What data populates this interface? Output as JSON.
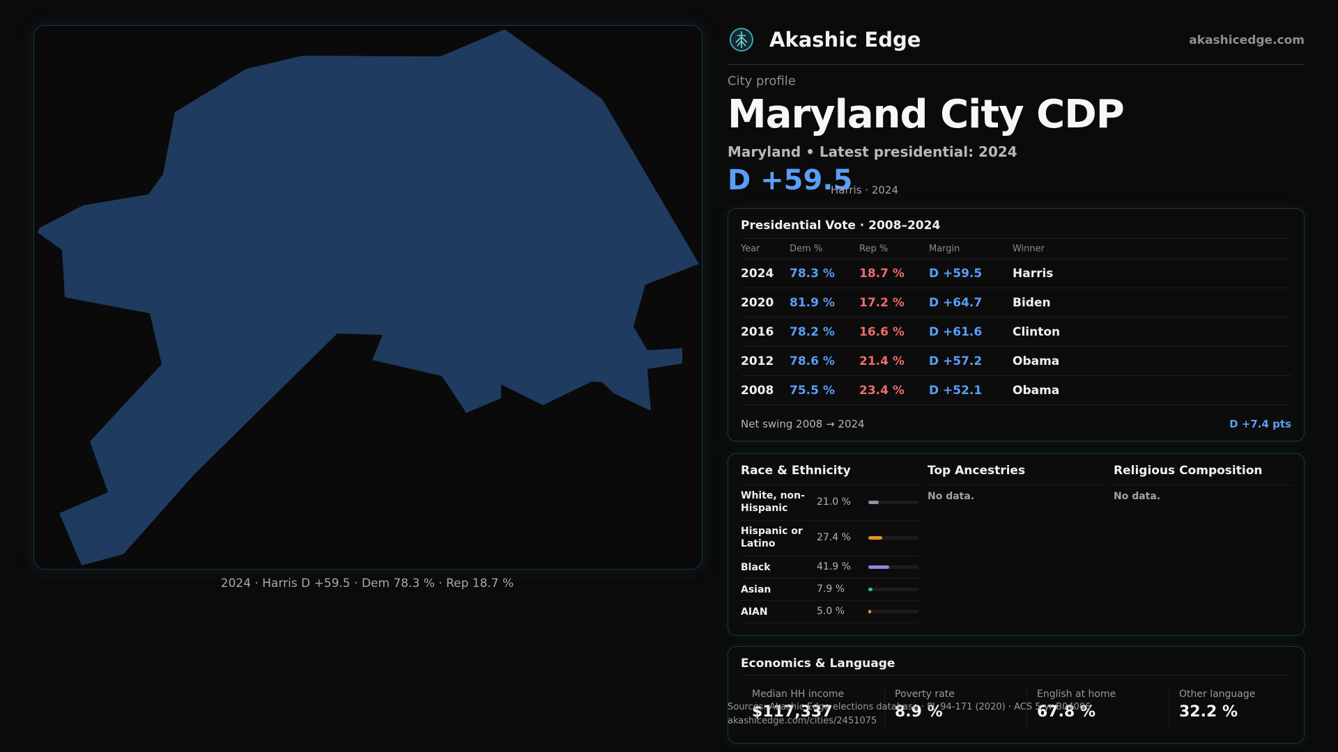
{
  "map": {
    "fill_color": "#1f3b5f",
    "caption": "2024 · Harris D +59.5 · Dem 78.3 % · Rep 18.7 %"
  },
  "brand": {
    "name": "Akashic Edge",
    "url": "akashicedge.com",
    "logo_icon": "tree-of-life-icon"
  },
  "profile": {
    "kicker": "City profile",
    "title": "Maryland City CDP",
    "subtitle": "Maryland • Latest presidential: 2024",
    "margin": "D +59.5",
    "margin_note": "Harris · 2024"
  },
  "vote": {
    "title": "Presidential Vote · 2008–2024",
    "headers": [
      "Year",
      "Dem %",
      "Rep %",
      "Margin",
      "Winner"
    ],
    "rows": [
      {
        "year": "2024",
        "dem": "78.3 %",
        "rep": "18.7 %",
        "margin": "D +59.5",
        "winner": "Harris"
      },
      {
        "year": "2020",
        "dem": "81.9 %",
        "rep": "17.2 %",
        "margin": "D +64.7",
        "winner": "Biden"
      },
      {
        "year": "2016",
        "dem": "78.2 %",
        "rep": "16.6 %",
        "margin": "D +61.6",
        "winner": "Clinton"
      },
      {
        "year": "2012",
        "dem": "78.6 %",
        "rep": "21.4 %",
        "margin": "D +57.2",
        "winner": "Obama"
      },
      {
        "year": "2008",
        "dem": "75.5 %",
        "rep": "23.4 %",
        "margin": "D +52.1",
        "winner": "Obama"
      }
    ],
    "swing_label": "Net swing 2008 → 2024",
    "swing_value": "D +7.4 pts"
  },
  "demographics": {
    "race": {
      "title": "Race & Ethnicity",
      "rows": [
        {
          "label": "White, non-Hispanic",
          "pct": "21.0 %",
          "value": 21.0,
          "color": "#8b95a3"
        },
        {
          "label": "Hispanic or Latino",
          "pct": "27.4 %",
          "value": 27.4,
          "color": "#e8902e"
        },
        {
          "label": "Black",
          "pct": "41.9 %",
          "value": 41.9,
          "color": "#9b7fe6"
        },
        {
          "label": "Asian",
          "pct": "7.9 %",
          "value": 7.9,
          "color": "#2fc39a"
        },
        {
          "label": "AIAN",
          "pct": "5.0 %",
          "value": 5.0,
          "color": "#e8902e"
        }
      ]
    },
    "ancestries": {
      "title": "Top Ancestries",
      "empty": "No data."
    },
    "religion": {
      "title": "Religious Composition",
      "empty": "No data."
    }
  },
  "economics": {
    "title": "Economics & Language",
    "items": [
      {
        "label": "Median HH income",
        "value": "$117,337"
      },
      {
        "label": "Poverty rate",
        "value": "8.9 %"
      },
      {
        "label": "English at home",
        "value": "67.8 %"
      },
      {
        "label": "Other language",
        "value": "32.2 %"
      }
    ]
  },
  "source": {
    "line1": "Sources: Akashic Edge elections database · PL 94-171 (2020) · ACS 5-yr B04006",
    "line2": "akashicedge.com/cities/2451075"
  }
}
